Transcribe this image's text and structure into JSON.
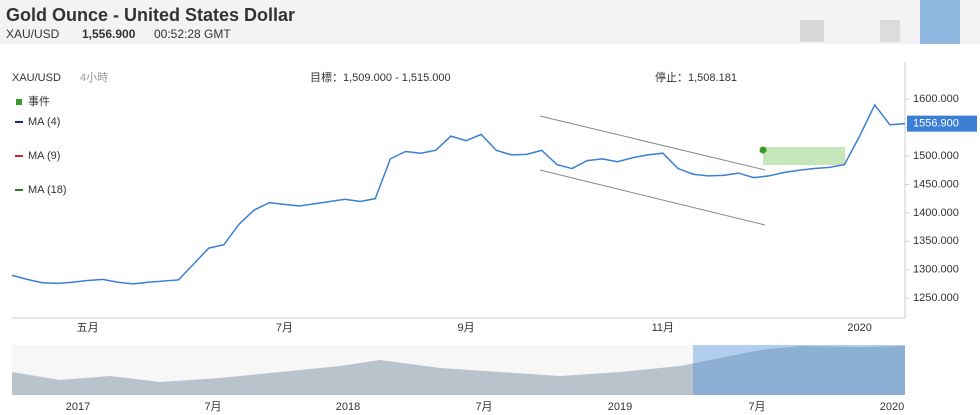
{
  "header": {
    "title": "Gold Ounce - United States Dollar",
    "symbol": "XAU/USD",
    "price": "1,556.900",
    "time": "00:52:28 GMT"
  },
  "toolbar": {
    "symbol": "XAU/USD",
    "interval": "4小時",
    "target": "目標：1,509.000 - 1,515.000",
    "stop": "停止：1,508.181"
  },
  "legend": [
    {
      "name": "事件",
      "color": "#3a9a2a"
    },
    {
      "name": "MA (4)",
      "color": "#1a2a8a"
    },
    {
      "name": "MA (9)",
      "color": "#d0202a"
    },
    {
      "name": "MA (18)",
      "color": "#2a7a1a"
    }
  ],
  "current_label": "1556.900",
  "chart_data": {
    "type": "line",
    "categories": [
      null,
      null,
      null,
      null,
      null,
      "五月",
      null,
      null,
      null,
      null,
      null,
      null,
      null,
      null,
      null,
      null,
      null,
      null,
      "7月",
      null,
      null,
      null,
      null,
      null,
      null,
      null,
      null,
      null,
      null,
      null,
      "9月",
      null,
      null,
      null,
      null,
      null,
      null,
      null,
      null,
      null,
      null,
      null,
      null,
      "11月",
      null,
      null,
      null,
      null,
      null,
      null,
      null,
      null,
      null,
      null,
      null,
      null,
      "2020",
      null,
      null,
      null
    ],
    "series": [
      {
        "name": "XAU/USD",
        "color": "#3b7fd4",
        "values": [
          1290,
          1283,
          1277,
          1276,
          1278,
          1281,
          1283,
          1278,
          1275,
          1278,
          1280,
          1282,
          1310,
          1338,
          1344,
          1380,
          1405,
          1418,
          1415,
          1412,
          1416,
          1420,
          1424,
          1420,
          1425,
          1495,
          1508,
          1505,
          1510,
          1535,
          1527,
          1538,
          1510,
          1502,
          1503,
          1510,
          1485,
          1478,
          1492,
          1495,
          1490,
          1497,
          1502,
          1505,
          1478,
          1468,
          1465,
          1466,
          1470,
          1462,
          1465,
          1471,
          1475,
          1478,
          1480,
          1485,
          1535,
          1590,
          1555,
          1557
        ]
      }
    ],
    "ylim": [
      1215,
      1625
    ],
    "yticks": [
      {
        "value": 1250,
        "label": "1250.000"
      },
      {
        "value": 1300,
        "label": "1300.000"
      },
      {
        "value": 1350,
        "label": "1350.000"
      },
      {
        "value": 1400,
        "label": "1400.000"
      },
      {
        "value": 1450,
        "label": "1450.000"
      },
      {
        "value": 1500,
        "label": "1500.000"
      },
      {
        "value": 1550,
        "label": "1550.000"
      },
      {
        "value": 1600,
        "label": "1600.000"
      }
    ]
  },
  "navigator": {
    "labels": [
      "2017",
      "7月",
      "2018",
      "7月",
      "2019",
      "7月",
      "2020"
    ]
  }
}
